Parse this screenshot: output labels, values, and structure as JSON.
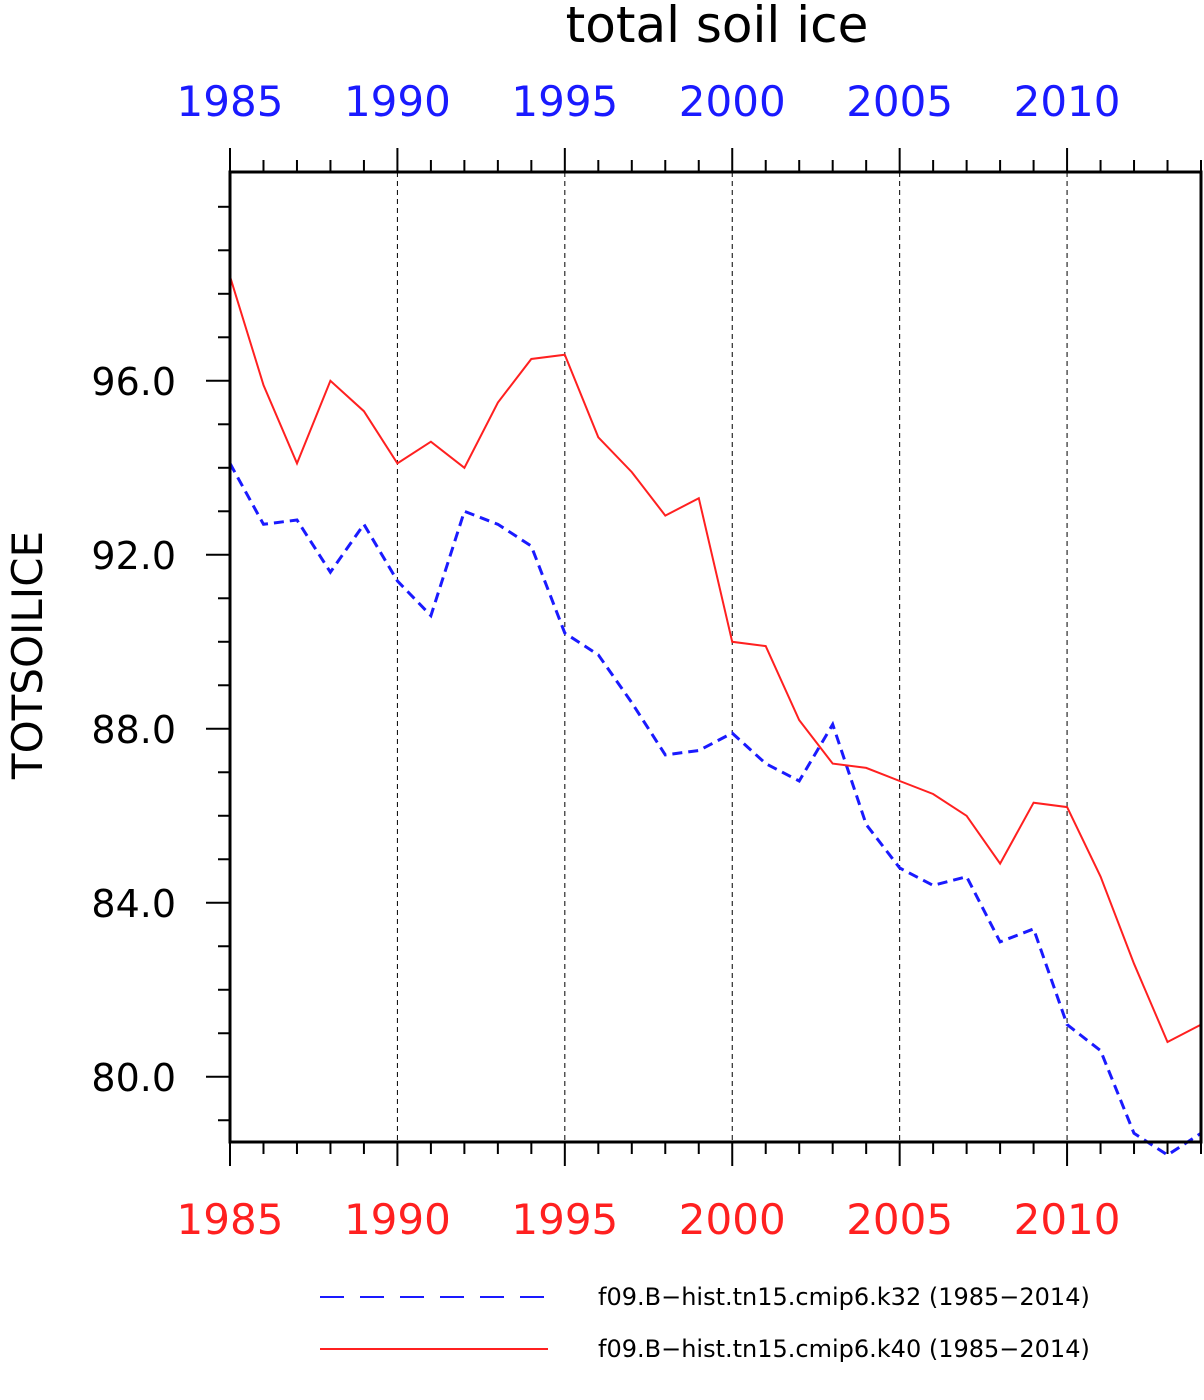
{
  "chart_data": {
    "type": "line",
    "title": "total soil ice",
    "xlabel": "",
    "ylabel": "TOTSOILICE",
    "xlim": [
      1985,
      2014
    ],
    "ylim": [
      78.5,
      100.8
    ],
    "x_ticks": [
      "1985",
      "1990",
      "1995",
      "2000",
      "2005",
      "2010"
    ],
    "x_tick_values": [
      1985,
      1990,
      1995,
      2000,
      2005,
      2010
    ],
    "y_ticks": [
      "80.0",
      "84.0",
      "88.0",
      "92.0",
      "96.0"
    ],
    "y_tick_values": [
      80,
      84,
      88,
      92,
      96
    ],
    "top_tick_color": "#1a1aff",
    "bottom_tick_color": "#ff2020",
    "grid": "vertical dashed at major x ticks",
    "legend_position": "bottom",
    "x": [
      1985,
      1986,
      1987,
      1988,
      1989,
      1990,
      1991,
      1992,
      1993,
      1994,
      1995,
      1996,
      1997,
      1998,
      1999,
      2000,
      2001,
      2002,
      2003,
      2004,
      2005,
      2006,
      2007,
      2008,
      2009,
      2010,
      2011,
      2012,
      2013,
      2014
    ],
    "series": [
      {
        "name": "f09.B−hist.tn15.cmip6.k32 (1985−2014)",
        "color": "#1a1aff",
        "style": "dashed",
        "values": [
          94.1,
          92.7,
          92.8,
          91.6,
          92.7,
          91.4,
          90.6,
          93.0,
          92.7,
          92.2,
          90.2,
          89.7,
          88.6,
          87.4,
          87.5,
          87.9,
          87.2,
          86.8,
          88.1,
          85.8,
          84.8,
          84.4,
          84.6,
          83.1,
          83.4,
          81.2,
          80.6,
          78.7,
          78.2,
          78.7
        ]
      },
      {
        "name": "f09.B−hist.tn15.cmip6.k40 (1985−2014)",
        "color": "#ff2020",
        "style": "solid",
        "values": [
          98.4,
          95.9,
          94.1,
          96.0,
          95.3,
          94.1,
          94.6,
          94.0,
          95.5,
          96.5,
          96.6,
          94.7,
          93.9,
          92.9,
          93.3,
          90.0,
          89.9,
          88.2,
          87.2,
          87.1,
          86.8,
          86.5,
          86.0,
          84.9,
          86.3,
          86.2,
          84.6,
          82.6,
          80.8,
          81.2
        ]
      }
    ]
  }
}
